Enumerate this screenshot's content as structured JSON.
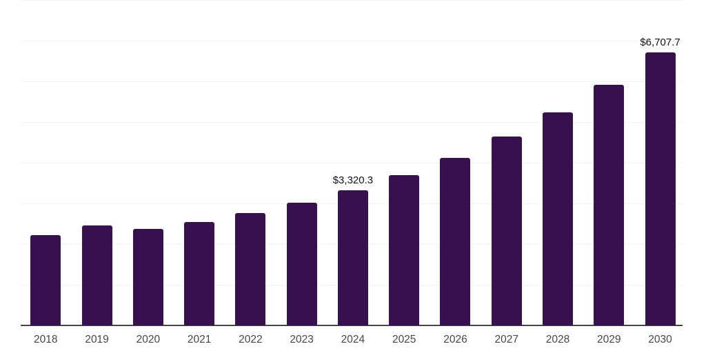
{
  "chart_data": {
    "type": "bar",
    "title": "",
    "xlabel": "",
    "ylabel": "",
    "categories": [
      "2018",
      "2019",
      "2020",
      "2021",
      "2022",
      "2023",
      "2024",
      "2025",
      "2026",
      "2027",
      "2028",
      "2029",
      "2030"
    ],
    "values": [
      2225,
      2460,
      2380,
      2540,
      2760,
      3015,
      3320.3,
      3695,
      4115,
      4640,
      5230,
      5920,
      6707.7
    ],
    "value_labels": [
      "",
      "",
      "",
      "",
      "",
      "",
      "$3,320.3",
      "",
      "",
      "",
      "",
      "",
      "$6,707.7"
    ],
    "ylim": [
      0,
      8000
    ],
    "gridline_step": 1000,
    "grid": true,
    "legend_position": "none",
    "y_axis_tick_labels_visible": false,
    "colors": {
      "bar": "#37114D",
      "axis_line": "#434343",
      "gridline": "#F1F1F1",
      "tick_label": "#464646",
      "value_label": "#111111",
      "background": "#FFFFFF"
    }
  }
}
